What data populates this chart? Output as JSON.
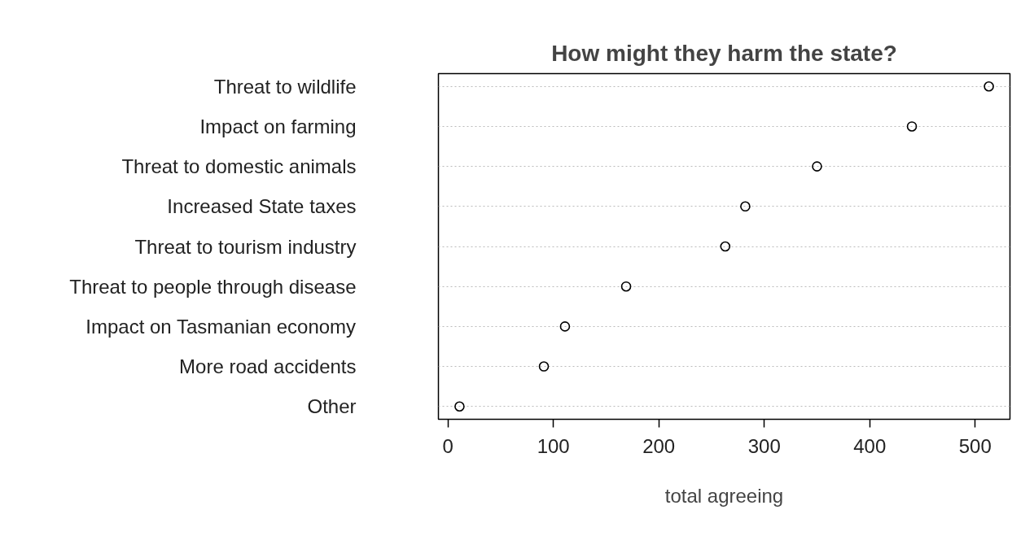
{
  "chart_data": {
    "type": "scatter",
    "orientation": "horizontal",
    "title": "How might they harm the state?",
    "xlabel": "total agreeing",
    "categories": [
      "Threat to wildlife",
      "Impact on farming",
      "Threat to domestic animals",
      "Increased State taxes",
      "Threat to tourism industry",
      "Threat to people through disease",
      "Impact on Tasmanian economy",
      "More road accidents",
      "Other"
    ],
    "values": [
      513,
      440,
      350,
      282,
      263,
      169,
      111,
      91,
      11
    ],
    "color": "#000000",
    "marker": "circle",
    "grid": "y",
    "xlim": [
      -9,
      533
    ],
    "xticks": [
      0,
      100,
      200,
      300,
      400,
      500
    ]
  }
}
